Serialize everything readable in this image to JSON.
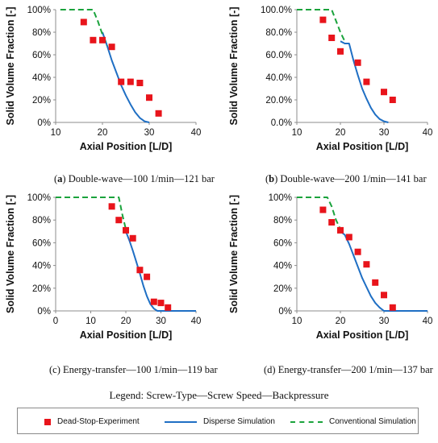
{
  "legend": {
    "title": "Legend: Screw-Type—Screw Speed—Backpressure",
    "items": [
      {
        "label": "Dead-Stop-Experiment",
        "color": "#e8141b",
        "kind": "marker"
      },
      {
        "label": "Disperse Simulation",
        "color": "#1f6fc4",
        "kind": "solid-line"
      },
      {
        "label": "Conventional Simulation",
        "color": "#1aa33c",
        "kind": "dashed-line"
      }
    ]
  },
  "captions": [
    {
      "letter": "a",
      "letter_bold": true,
      "text": "Double-wave—100 1/min—121 bar"
    },
    {
      "letter": "b",
      "letter_bold": true,
      "text": "Double-wave—200 1/min—141 bar"
    },
    {
      "letter": "c",
      "letter_bold": false,
      "text": "Energy-transfer—100 1/min—119 bar"
    },
    {
      "letter": "d",
      "letter_bold": false,
      "text": "Energy-transfer—200 1/min—137 bar"
    }
  ],
  "chart_data": [
    {
      "type": "scatter",
      "xlabel": "Axial Position [L/D]",
      "ylabel": "Solid Volume Fraction [-]",
      "xlim": [
        10,
        40
      ],
      "ylim": [
        0,
        100
      ],
      "xticks": [
        "10",
        "20",
        "30",
        "40"
      ],
      "yticks": [
        "0%",
        "20%",
        "40%",
        "60%",
        "80%",
        "100%"
      ],
      "grid": false,
      "series": [
        {
          "name": "Dead-Stop-Experiment",
          "type": "scatter",
          "color": "#e8141b",
          "points": [
            [
              16,
              89
            ],
            [
              18,
              73
            ],
            [
              20,
              73
            ],
            [
              22,
              67
            ],
            [
              24,
              36
            ],
            [
              26,
              36
            ],
            [
              28,
              35
            ],
            [
              30,
              22
            ],
            [
              32,
              8
            ]
          ]
        },
        {
          "name": "Disperse Simulation",
          "type": "line",
          "color": "#1f6fc4",
          "points": [
            [
              20,
              80
            ],
            [
              21,
              68
            ],
            [
              22,
              55
            ],
            [
              23,
              44
            ],
            [
              24,
              33
            ],
            [
              25,
              24
            ],
            [
              26,
              16
            ],
            [
              27,
              9
            ],
            [
              28,
              4
            ],
            [
              29,
              1
            ],
            [
              30,
              0
            ]
          ]
        },
        {
          "name": "Conventional Simulation",
          "type": "line",
          "dashed": true,
          "color": "#1aa33c",
          "points": [
            [
              11,
              100
            ],
            [
              18,
              100
            ],
            [
              19,
              90
            ],
            [
              20,
              78
            ],
            [
              21,
              68
            ]
          ]
        }
      ]
    },
    {
      "type": "scatter",
      "xlabel": "Axial Position [L/D]",
      "ylabel": "Solid Volume Fraction [-]",
      "xlim": [
        10,
        40
      ],
      "ylim": [
        0,
        100
      ],
      "xticks": [
        "10",
        "20",
        "30",
        "40"
      ],
      "yticks": [
        "0.0%",
        "20.0%",
        "40.0%",
        "60.0%",
        "80.0%",
        "100.0%"
      ],
      "grid": false,
      "series": [
        {
          "name": "Dead-Stop-Experiment",
          "type": "scatter",
          "color": "#e8141b",
          "points": [
            [
              16,
              91
            ],
            [
              18,
              75
            ],
            [
              20,
              63
            ],
            [
              24,
              53
            ],
            [
              26,
              36
            ],
            [
              30,
              27
            ],
            [
              32,
              20
            ]
          ]
        },
        {
          "name": "Disperse Simulation",
          "type": "line",
          "color": "#1f6fc4",
          "points": [
            [
              20,
              72
            ],
            [
              21,
              70
            ],
            [
              22,
              70
            ],
            [
              23,
              55
            ],
            [
              24,
              42
            ],
            [
              25,
              30
            ],
            [
              26,
              21
            ],
            [
              27,
              13
            ],
            [
              28,
              7
            ],
            [
              29,
              3
            ],
            [
              30,
              1
            ],
            [
              31,
              0
            ]
          ]
        },
        {
          "name": "Conventional Simulation",
          "type": "line",
          "dashed": true,
          "color": "#1aa33c",
          "points": [
            [
              10,
              100
            ],
            [
              18,
              100
            ],
            [
              19,
              90
            ],
            [
              20,
              80
            ],
            [
              21,
              72
            ]
          ]
        }
      ]
    },
    {
      "type": "scatter",
      "xlabel": "Axial Position [L/D]",
      "ylabel": "Solid Volume Fraction [-]",
      "xlim": [
        0,
        40
      ],
      "ylim": [
        0,
        100
      ],
      "xticks": [
        "0",
        "10",
        "20",
        "30",
        "40"
      ],
      "yticks": [
        "0%",
        "20%",
        "40%",
        "60%",
        "80%",
        "100%"
      ],
      "grid": false,
      "series": [
        {
          "name": "Dead-Stop-Experiment",
          "type": "scatter",
          "color": "#e8141b",
          "points": [
            [
              16,
              92
            ],
            [
              18,
              80
            ],
            [
              20,
              71
            ],
            [
              22,
              64
            ],
            [
              24,
              36
            ],
            [
              26,
              30
            ],
            [
              28,
              8
            ],
            [
              30,
              7
            ],
            [
              32,
              3
            ]
          ]
        },
        {
          "name": "Disperse Simulation",
          "type": "line",
          "color": "#1f6fc4",
          "points": [
            [
              20,
              70
            ],
            [
              21,
              62
            ],
            [
              22,
              53
            ],
            [
              23,
              43
            ],
            [
              24,
              33
            ],
            [
              25,
              22
            ],
            [
              26,
              13
            ],
            [
              27,
              6
            ],
            [
              28,
              2
            ],
            [
              29,
              0
            ],
            [
              40,
              0
            ]
          ]
        },
        {
          "name": "Conventional Simulation",
          "type": "line",
          "dashed": true,
          "color": "#1aa33c",
          "points": [
            [
              0,
              100
            ],
            [
              18,
              100
            ],
            [
              19,
              85
            ],
            [
              20,
              72
            ]
          ]
        }
      ]
    },
    {
      "type": "scatter",
      "xlabel": "Axial Position [L/D]",
      "ylabel": "Solid Volume Fraction [-]",
      "xlim": [
        10,
        40
      ],
      "ylim": [
        0,
        100
      ],
      "xticks": [
        "10",
        "20",
        "30",
        "40"
      ],
      "yticks": [
        "0%",
        "20%",
        "40%",
        "60%",
        "80%",
        "100%"
      ],
      "grid": false,
      "series": [
        {
          "name": "Dead-Stop-Experiment",
          "type": "scatter",
          "color": "#e8141b",
          "points": [
            [
              16,
              89
            ],
            [
              18,
              78
            ],
            [
              20,
              71
            ],
            [
              22,
              65
            ],
            [
              24,
              52
            ],
            [
              26,
              41
            ],
            [
              28,
              25
            ],
            [
              30,
              14
            ],
            [
              32,
              3
            ]
          ]
        },
        {
          "name": "Disperse Simulation",
          "type": "line",
          "color": "#1f6fc4",
          "points": [
            [
              20,
              70
            ],
            [
              21,
              67
            ],
            [
              22,
              59
            ],
            [
              23,
              49
            ],
            [
              24,
              39
            ],
            [
              25,
              29
            ],
            [
              26,
              21
            ],
            [
              27,
              13
            ],
            [
              28,
              7
            ],
            [
              29,
              3
            ],
            [
              30,
              0
            ],
            [
              40,
              0
            ]
          ]
        },
        {
          "name": "Conventional Simulation",
          "type": "line",
          "dashed": true,
          "color": "#1aa33c",
          "points": [
            [
              10,
              100
            ],
            [
              17,
              100
            ],
            [
              18,
              92
            ],
            [
              19,
              80
            ],
            [
              20,
              72
            ],
            [
              21,
              70
            ]
          ]
        }
      ]
    }
  ]
}
